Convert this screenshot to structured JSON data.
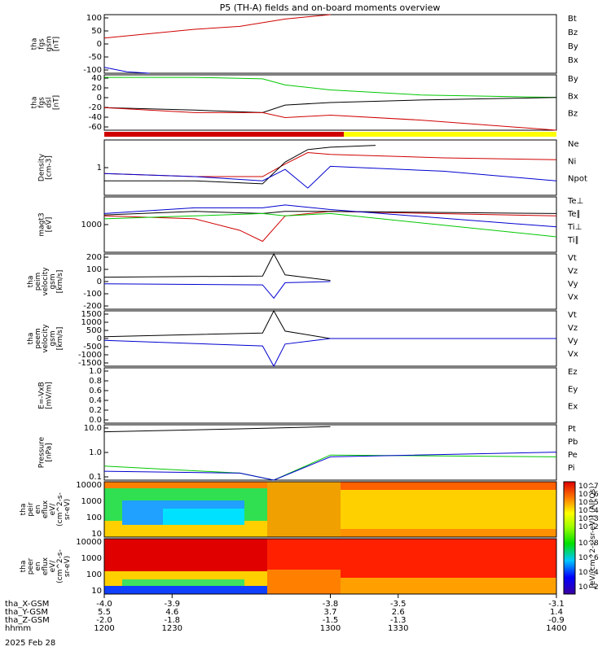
{
  "title": "P5 (TH-A) fields and on-board moments overview",
  "date_label": "2025 Feb 28",
  "colors": {
    "black": "#000000",
    "red": "#d00000",
    "green": "#00c800",
    "blue": "#0000d0",
    "yellow": "#ffff00"
  },
  "xaxis": {
    "ticks": [
      1200,
      1230,
      1300,
      1330,
      1400
    ],
    "rows": [
      {
        "name": "tha_X-GSM",
        "values": [
          "-4.0",
          "-3.9",
          "-3.8",
          "-3.5",
          "-3.1"
        ]
      },
      {
        "name": "tha_Y-GSM",
        "values": [
          "5.5",
          "4.6",
          "3.7",
          "2.6",
          "1.4"
        ]
      },
      {
        "name": "tha_Z-GSM",
        "values": [
          "-2.0",
          "-1.8",
          "-1.5",
          "-1.3",
          "-0.9"
        ]
      },
      {
        "name": "hhmm",
        "values": [
          "1200",
          "1230",
          "1300",
          "1330",
          "1400"
        ]
      }
    ]
  },
  "panels": [
    {
      "id": "fgs-gsm",
      "ylabel": [
        "tha",
        "fgs",
        "gsm",
        "[nT]"
      ],
      "ticks": [
        "100",
        "50",
        "0",
        "-50",
        "-100"
      ],
      "legend": [
        {
          "text": "Bt",
          "color": "black"
        },
        {
          "text": "Bz",
          "color": "red"
        },
        {
          "text": "By",
          "color": "green"
        },
        {
          "text": "Bx",
          "color": "blue"
        }
      ]
    },
    {
      "id": "fgs-dsl",
      "ylabel": [
        "tha",
        "fgs",
        "dsl",
        "[nT]"
      ],
      "ticks": [
        "40",
        "20",
        "0",
        "-20",
        "-40",
        "-60"
      ],
      "legend": [
        {
          "text": "By",
          "color": "green"
        },
        {
          "text": "Bx",
          "color": "black"
        },
        {
          "text": "Bz",
          "color": "red"
        }
      ]
    },
    {
      "id": "density",
      "ylabel": [
        "Density",
        "[cm-3]"
      ],
      "ticks": [
        "1"
      ],
      "legend": [
        {
          "text": "Ne",
          "color": "red"
        },
        {
          "text": "Ni",
          "color": "black"
        },
        {
          "text": "Npot",
          "color": "blue"
        }
      ]
    },
    {
      "id": "temp",
      "ylabel": [
        "magt3",
        "[eV]"
      ],
      "ticks": [
        "1000"
      ],
      "legend": [
        {
          "text": "Te⊥",
          "color": "red"
        },
        {
          "text": "Te∥",
          "color": "black"
        },
        {
          "text": "Ti⊥",
          "color": "blue"
        },
        {
          "text": "Ti∥",
          "color": "green"
        }
      ]
    },
    {
      "id": "vel-i",
      "ylabel": [
        "tha",
        "peim",
        "velocity",
        "gsm",
        "[km/s]"
      ],
      "ticks": [
        "200",
        "100",
        "0",
        "-100",
        "-200"
      ],
      "legend": [
        {
          "text": "Vt",
          "color": "black"
        },
        {
          "text": "Vz",
          "color": "red"
        },
        {
          "text": "Vy",
          "color": "green"
        },
        {
          "text": "Vx",
          "color": "blue"
        }
      ]
    },
    {
      "id": "vel-e",
      "ylabel": [
        "tha",
        "peem",
        "velocity",
        "gsm",
        "[km/s]"
      ],
      "ticks": [
        "1500",
        "1000",
        "500",
        "0",
        "-500",
        "-1000",
        "-1500"
      ],
      "legend": [
        {
          "text": "Vt",
          "color": "black"
        },
        {
          "text": "Vz",
          "color": "red"
        },
        {
          "text": "Vy",
          "color": "green"
        },
        {
          "text": "Vx",
          "color": "blue"
        }
      ]
    },
    {
      "id": "efield",
      "ylabel": [
        "E=-VxB",
        "[mV/m]"
      ],
      "ticks": [
        "1.0",
        "0.8",
        "0.6",
        "0.4",
        "0.2",
        "0.0"
      ],
      "legend": [
        {
          "text": "Ez",
          "color": "red"
        },
        {
          "text": "Ey",
          "color": "green"
        },
        {
          "text": "Ex",
          "color": "blue"
        }
      ]
    },
    {
      "id": "pressure",
      "ylabel": [
        "Pressure",
        "[nPa]"
      ],
      "ticks": [
        "10.0",
        "1.0",
        "0.1"
      ],
      "legend": [
        {
          "text": "Pt",
          "color": "black"
        },
        {
          "text": "Pb",
          "color": "red"
        },
        {
          "text": "Pe",
          "color": "green"
        },
        {
          "text": "Pi",
          "color": "blue"
        }
      ]
    },
    {
      "id": "spec-i",
      "ylabel": [
        "tha",
        "peir",
        "en",
        "eflux",
        "eV/",
        "(cm^2-s-",
        "sr-eV)"
      ],
      "ticks": [
        "10000",
        "1000",
        "100",
        "10"
      ],
      "legend": []
    },
    {
      "id": "spec-e",
      "ylabel": [
        "tha",
        "peer",
        "en",
        "eflux",
        "eV/",
        "(cm^2-s-",
        "sr-eV)"
      ],
      "ticks": [
        "10000",
        "1000",
        "100",
        "10"
      ],
      "legend": []
    }
  ],
  "colorbar": {
    "ticks_top": [
      "10^7",
      "10^6",
      "10^5",
      "10^4",
      "10^3",
      "10^2"
    ],
    "ticks_bottom": [
      "10^8",
      "10^6",
      "10^4",
      "10^2"
    ],
    "label": "[eV/(cm^2-s-sr-eV)] (All Qs)"
  },
  "chart_data": [
    {
      "type": "line",
      "name": "fgs-gsm",
      "x_range": [
        1200,
        1400
      ],
      "ylim": [
        -100,
        100
      ],
      "series": [
        {
          "name": "Bz",
          "color": "red",
          "x": [
            1200,
            1220,
            1240,
            1260,
            1280,
            1300
          ],
          "y": [
            20,
            35,
            50,
            60,
            85,
            100
          ]
        },
        {
          "name": "Bx",
          "color": "blue",
          "x": [
            1200,
            1210,
            1220
          ],
          "y": [
            -80,
            -95,
            -100
          ]
        }
      ]
    },
    {
      "type": "line",
      "name": "fgs-dsl",
      "x_range": [
        1200,
        1400
      ],
      "ylim": [
        -70,
        40
      ],
      "series": [
        {
          "name": "By",
          "color": "green",
          "x": [
            1200,
            1240,
            1270,
            1280,
            1300,
            1340,
            1400
          ],
          "y": [
            35,
            35,
            32,
            20,
            10,
            0,
            -5
          ]
        },
        {
          "name": "Bx",
          "color": "black",
          "x": [
            1200,
            1240,
            1270,
            1280,
            1300,
            1340,
            1400
          ],
          "y": [
            -25,
            -30,
            -35,
            -20,
            -15,
            -10,
            -5
          ]
        },
        {
          "name": "Bz",
          "color": "red",
          "x": [
            1200,
            1240,
            1270,
            1280,
            1300,
            1340,
            1400
          ],
          "y": [
            -25,
            -35,
            -35,
            -45,
            -40,
            -50,
            -70
          ]
        }
      ]
    },
    {
      "type": "line",
      "name": "density",
      "x_range": [
        1200,
        1400
      ],
      "ylog": true,
      "ylim": [
        0.05,
        10
      ],
      "series": [
        {
          "name": "Ne",
          "color": "red",
          "x": [
            1200,
            1240,
            1270,
            1280,
            1290,
            1300,
            1350,
            1400
          ],
          "y": [
            0.4,
            0.3,
            0.3,
            1.0,
            3,
            2.5,
            1.8,
            1.5
          ]
        },
        {
          "name": "Ni",
          "color": "black",
          "x": [
            1200,
            1240,
            1270,
            1280,
            1290,
            1300,
            1320
          ],
          "y": [
            0.2,
            0.2,
            0.15,
            1.2,
            4,
            5,
            6
          ]
        },
        {
          "name": "Npot",
          "color": "blue",
          "x": [
            1200,
            1240,
            1270,
            1280,
            1290,
            1300,
            1350,
            1400
          ],
          "y": [
            0.4,
            0.3,
            0.2,
            0.6,
            0.1,
            0.8,
            0.5,
            0.2
          ]
        }
      ]
    },
    {
      "type": "line",
      "name": "temp",
      "x_range": [
        1200,
        1400
      ],
      "ylog": true,
      "ylim": [
        300,
        10000
      ],
      "series": [
        {
          "name": "Te⊥",
          "color": "red",
          "x": [
            1200,
            1240,
            1260,
            1270,
            1280,
            1300,
            1400
          ],
          "y": [
            3000,
            2500,
            1200,
            600,
            3000,
            4000,
            3000
          ]
        },
        {
          "name": "Te∥",
          "color": "black",
          "x": [
            1200,
            1240,
            1270,
            1280,
            1300,
            1400
          ],
          "y": [
            3200,
            4000,
            3500,
            4000,
            4000,
            3500
          ]
        },
        {
          "name": "Ti⊥",
          "color": "blue",
          "x": [
            1200,
            1240,
            1270,
            1280,
            1300,
            1400
          ],
          "y": [
            3500,
            5000,
            5000,
            6000,
            4500,
            1500
          ]
        },
        {
          "name": "Ti∥",
          "color": "green",
          "x": [
            1200,
            1240,
            1270,
            1280,
            1300,
            1400
          ],
          "y": [
            2500,
            3000,
            3500,
            3000,
            3500,
            800
          ]
        }
      ]
    },
    {
      "type": "line",
      "name": "vel-i",
      "x_range": [
        1200,
        1400
      ],
      "ylim": [
        -250,
        250
      ],
      "series": [
        {
          "name": "Vt",
          "color": "black",
          "x": [
            1200,
            1270,
            1275,
            1280,
            1300
          ],
          "y": [
            40,
            50,
            250,
            60,
            10
          ]
        },
        {
          "name": "Vx",
          "color": "blue",
          "x": [
            1200,
            1270,
            1275,
            1280,
            1300
          ],
          "y": [
            -20,
            -30,
            -150,
            -10,
            0
          ]
        }
      ]
    },
    {
      "type": "line",
      "name": "vel-e",
      "x_range": [
        1200,
        1400
      ],
      "ylim": [
        -1500,
        1500
      ],
      "series": [
        {
          "name": "Vt",
          "color": "black",
          "x": [
            1200,
            1270,
            1275,
            1280,
            1300,
            1400
          ],
          "y": [
            100,
            300,
            1500,
            400,
            0,
            0
          ]
        },
        {
          "name": "Vx",
          "color": "blue",
          "x": [
            1200,
            1270,
            1275,
            1280,
            1300,
            1400
          ],
          "y": [
            -100,
            -400,
            -1500,
            -300,
            0,
            0
          ]
        }
      ]
    },
    {
      "type": "line",
      "name": "pressure",
      "x_range": [
        1200,
        1400
      ],
      "ylog": true,
      "ylim": [
        0.05,
        12
      ],
      "series": [
        {
          "name": "Pt",
          "color": "black",
          "x": [
            1200,
            1260,
            1300
          ],
          "y": [
            6,
            8,
            10
          ]
        },
        {
          "name": "Pe",
          "color": "green",
          "x": [
            1200,
            1260,
            1275,
            1300,
            1400
          ],
          "y": [
            0.2,
            0.1,
            0.05,
            0.6,
            0.5
          ]
        },
        {
          "name": "Pi",
          "color": "blue",
          "x": [
            1200,
            1260,
            1275,
            1300,
            1400
          ],
          "y": [
            0.12,
            0.1,
            0.05,
            0.5,
            0.8
          ]
        }
      ]
    },
    {
      "type": "heatmap",
      "name": "spec-i",
      "x_range": [
        1200,
        1400
      ],
      "ylog": true,
      "ylim": [
        7,
        20000
      ],
      "description_levels": {
        "x": [
          1200,
          1270,
          1300,
          1400
        ],
        "energy_flux_low": [
          1000.0,
          1000.0,
          100000.0,
          100000.0
        ],
        "energy_flux_high": [
          1000000.0,
          1000000.0,
          100000.0,
          1000000.0
        ]
      }
    },
    {
      "type": "heatmap",
      "name": "spec-e",
      "x_range": [
        1200,
        1400
      ],
      "ylog": true,
      "ylim": [
        7,
        20000
      ],
      "description_levels": {
        "x": [
          1200,
          1270,
          1300,
          1400
        ],
        "energy_flux_low": [
          100.0,
          1000.0,
          1000000.0,
          1000000.0
        ],
        "energy_flux_high": [
          100000000.0,
          100000000.0,
          10000000.0,
          10000000.0
        ]
      }
    }
  ]
}
